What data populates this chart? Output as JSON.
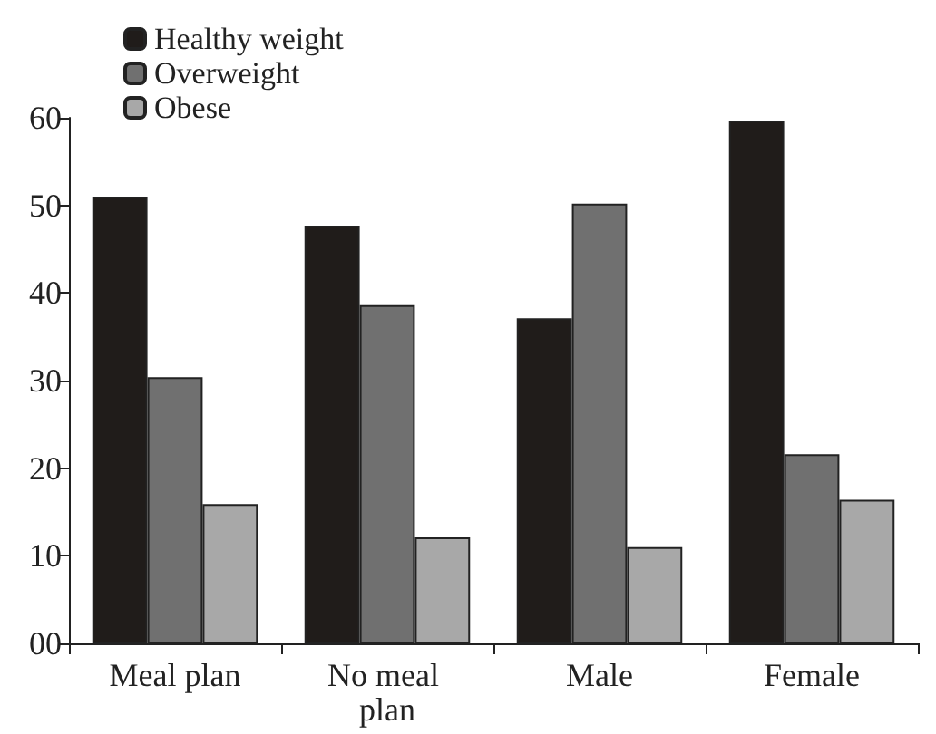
{
  "chart_data": {
    "type": "bar",
    "categories": [
      "Meal plan",
      "No meal plan",
      "Male",
      "Female"
    ],
    "series": [
      {
        "name": "Healthy weight",
        "color": "#201c1a",
        "values": [
          51,
          47.7,
          37.1,
          59.7
        ]
      },
      {
        "name": "Overweight",
        "color": "#707070",
        "values": [
          30.4,
          38.6,
          50.2,
          21.6
        ]
      },
      {
        "name": "Obese",
        "color": "#a8a8a8",
        "values": [
          15.9,
          12.1,
          11,
          16.4
        ]
      }
    ],
    "ylim": [
      0,
      60
    ],
    "yticks": [
      {
        "value": 0,
        "label": "00"
      },
      10,
      20,
      30,
      40,
      50,
      60
    ],
    "grid": false,
    "legend": "top left"
  }
}
